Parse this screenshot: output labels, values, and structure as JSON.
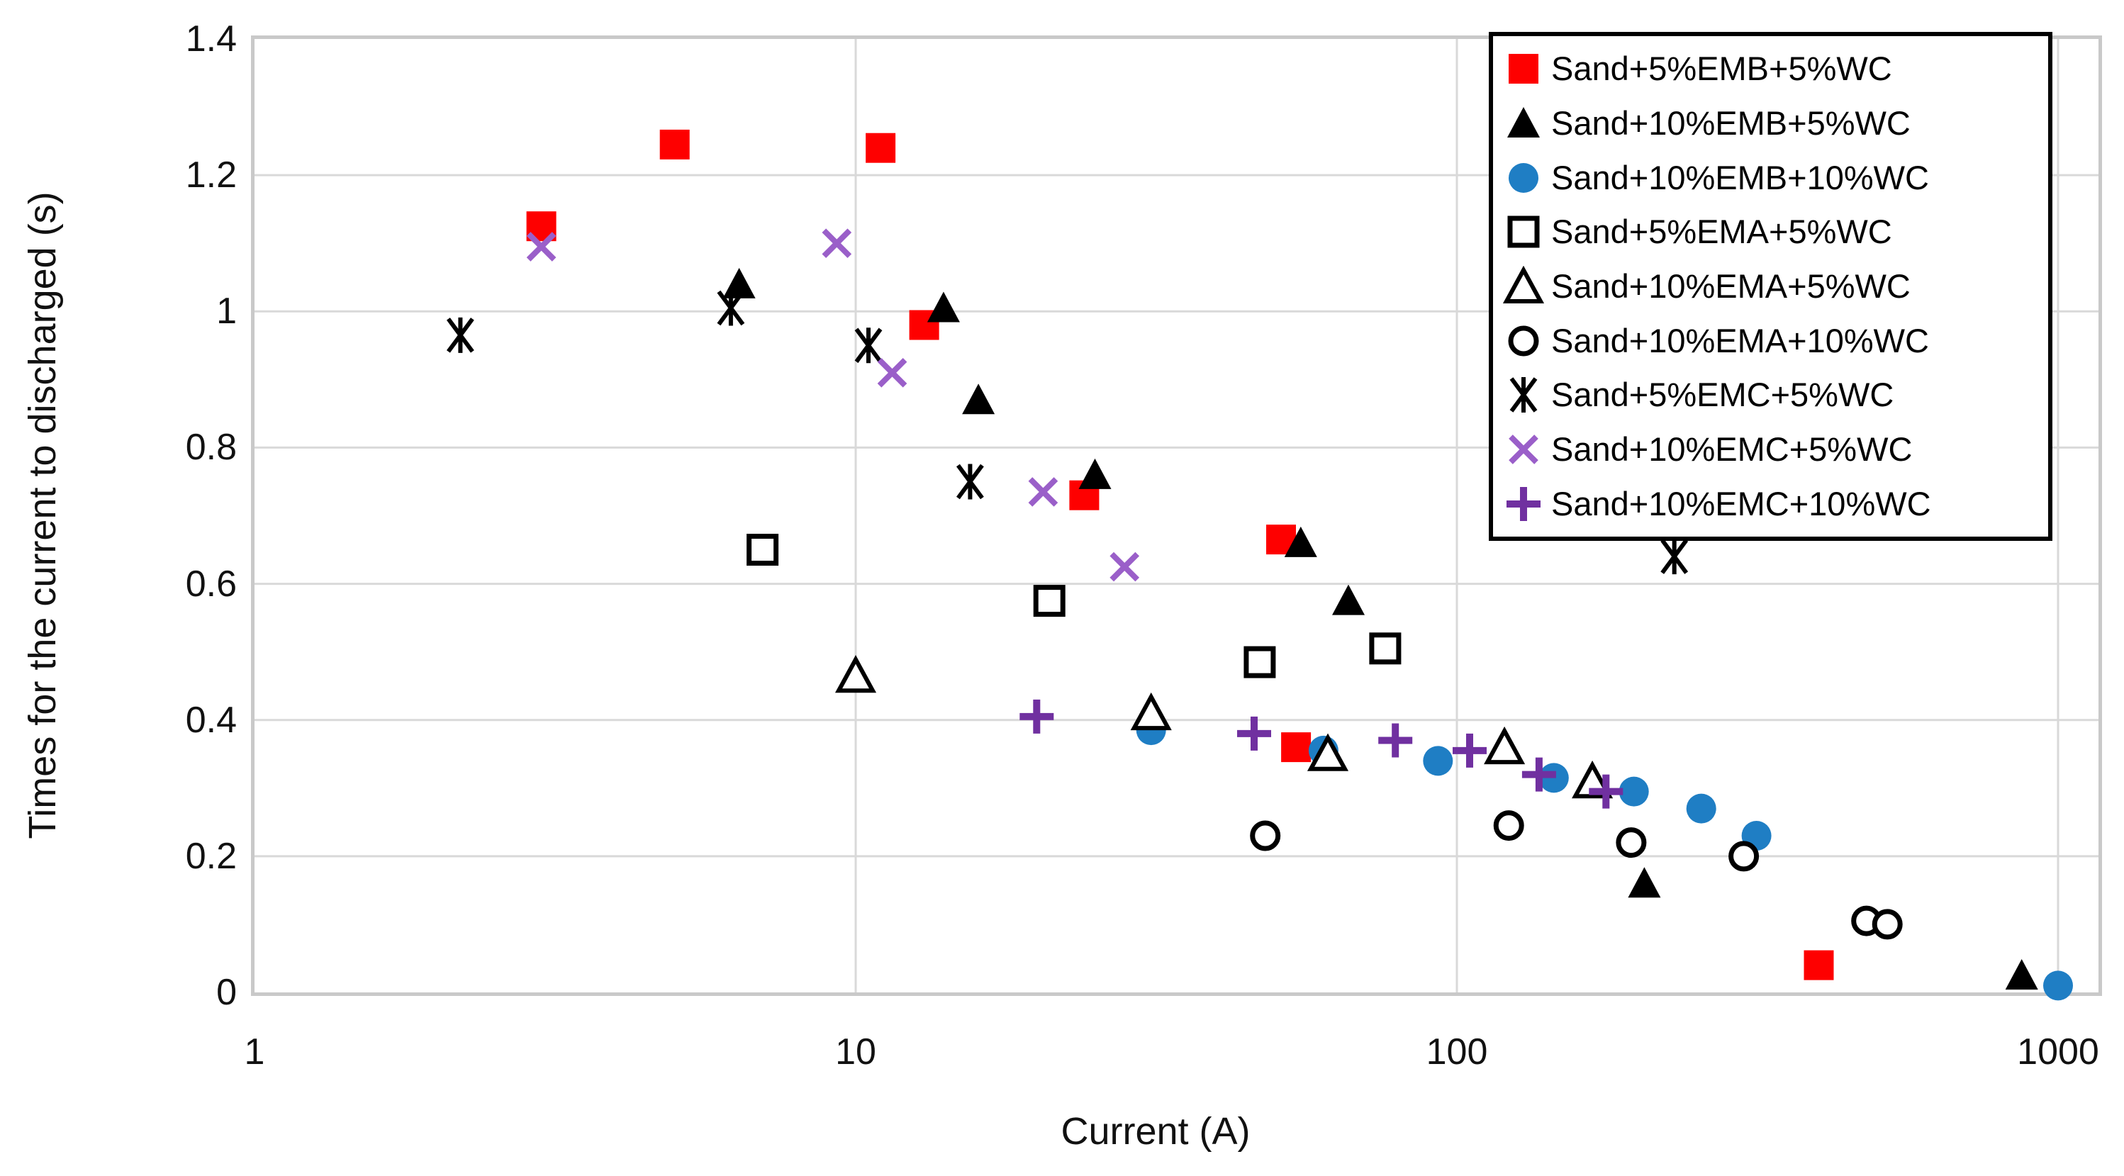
{
  "chart_data": {
    "type": "scatter",
    "title": "",
    "xlabel": "Current (A)",
    "ylabel": "Times for the current to discharged (s)",
    "x_scale": "log",
    "xlim": [
      1,
      1150
    ],
    "ylim": [
      0,
      1.4
    ],
    "x_ticks": [
      1,
      10,
      100,
      1000
    ],
    "y_ticks": [
      0,
      0.2,
      0.4,
      0.6,
      0.8,
      1,
      1.2,
      1.4
    ],
    "grid": true,
    "legend_position": "top-right",
    "colors": {
      "red": "#FE0000",
      "black": "#000000",
      "blue": "#1F7EC4",
      "purple_x": "#9A5FC9",
      "purple_plus": "#7030A0",
      "gridline": "#D9D9D9",
      "plot_border": "#C9C9C9"
    },
    "series": [
      {
        "name": "Sand+5%EMB+5%WC",
        "marker": "square",
        "color": "#FE0000",
        "points": [
          [
            3,
            1.125
          ],
          [
            5,
            1.245
          ],
          [
            11,
            1.24
          ],
          [
            13,
            0.98
          ],
          [
            24,
            0.73
          ],
          [
            51,
            0.665
          ],
          [
            54,
            0.36
          ],
          [
            400,
            0.04
          ]
        ]
      },
      {
        "name": "Sand+10%EMB+5%WC",
        "marker": "triangle",
        "color": "#000000",
        "points": [
          [
            6.4,
            1.04
          ],
          [
            14,
            1.005
          ],
          [
            16,
            0.87
          ],
          [
            25,
            0.76
          ],
          [
            55,
            0.66
          ],
          [
            66,
            0.575
          ],
          [
            205,
            0.16
          ],
          [
            870,
            0.025
          ]
        ]
      },
      {
        "name": "Sand+10%EMB+10%WC",
        "marker": "circle",
        "color": "#1F7EC4",
        "points": [
          [
            31,
            0.385
          ],
          [
            60,
            0.355
          ],
          [
            93,
            0.34
          ],
          [
            145,
            0.315
          ],
          [
            197,
            0.295
          ],
          [
            255,
            0.27
          ],
          [
            315,
            0.23
          ],
          [
            1000,
            0.01
          ]
        ]
      },
      {
        "name": "Sand+5%EMA+5%WC",
        "marker": "square-open",
        "color": "#000000",
        "points": [
          [
            7,
            0.65
          ],
          [
            21,
            0.575
          ],
          [
            47,
            0.485
          ],
          [
            76,
            0.505
          ]
        ]
      },
      {
        "name": "Sand+10%EMA+5%WC",
        "marker": "triangle-open",
        "color": "#000000",
        "points": [
          [
            10,
            0.465
          ],
          [
            31,
            0.41
          ],
          [
            61,
            0.35
          ],
          [
            120,
            0.36
          ],
          [
            168,
            0.31
          ]
        ]
      },
      {
        "name": "Sand+10%EMA+10%WC",
        "marker": "circle-open",
        "color": "#000000",
        "points": [
          [
            48,
            0.23
          ],
          [
            122,
            0.245
          ],
          [
            195,
            0.22
          ],
          [
            300,
            0.2
          ],
          [
            480,
            0.105
          ],
          [
            520,
            0.1
          ]
        ]
      },
      {
        "name": "Sand+5%EMC+5%WC",
        "marker": "star",
        "color": "#000000",
        "points": [
          [
            2.2,
            0.965
          ],
          [
            6.2,
            1.005
          ],
          [
            10.5,
            0.95
          ],
          [
            15.5,
            0.75
          ],
          [
            230,
            0.64
          ]
        ]
      },
      {
        "name": "Sand+10%EMC+5%WC",
        "marker": "x",
        "color": "#9A5FC9",
        "points": [
          [
            3,
            1.095
          ],
          [
            9.3,
            1.1
          ],
          [
            11.5,
            0.91
          ],
          [
            20.5,
            0.735
          ],
          [
            28,
            0.625
          ]
        ]
      },
      {
        "name": "Sand+10%EMC+10%WC",
        "marker": "plus",
        "color": "#7030A0",
        "points": [
          [
            20,
            0.405
          ],
          [
            46,
            0.38
          ],
          [
            79,
            0.37
          ],
          [
            105,
            0.355
          ],
          [
            137,
            0.32
          ],
          [
            177,
            0.295
          ]
        ]
      }
    ]
  },
  "layout_text": {
    "x_axis_title": "Current (A)",
    "y_axis_title": "Times for the current to discharged (s)"
  }
}
